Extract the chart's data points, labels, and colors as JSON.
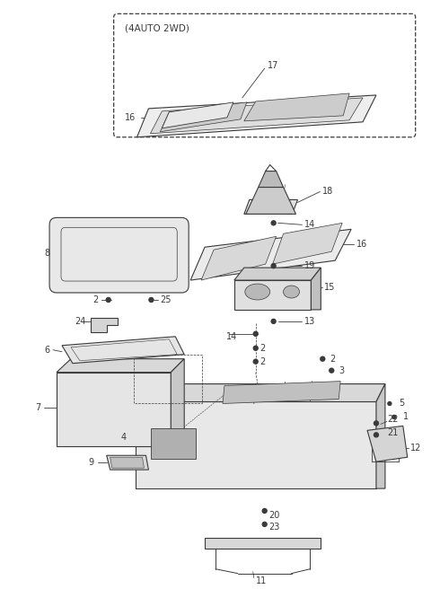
{
  "bg_color": "#ffffff",
  "line_color": "#3a3a3a",
  "fig_width": 4.8,
  "fig_height": 6.56,
  "dpi": 100
}
